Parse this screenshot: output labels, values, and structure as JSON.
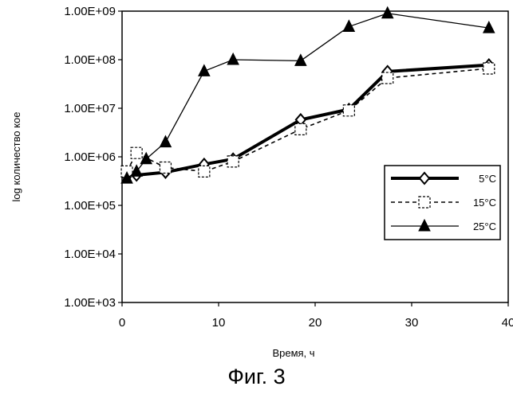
{
  "chart_data": {
    "type": "line",
    "title": "",
    "xlabel": "Время, ч",
    "ylabel": "log количество кое",
    "x_ticks": [
      "0",
      "10",
      "20",
      "30",
      "40"
    ],
    "y_ticks": [
      "1.00E+03",
      "1.00E+04",
      "1.00E+05",
      "1.00E+06",
      "1.00E+07",
      "1.00E+08",
      "1.00E+09"
    ],
    "xlim": [
      0,
      40
    ],
    "ylim": [
      1000,
      1000000000
    ],
    "y_scale": "log",
    "grid": false,
    "legend_position": "right",
    "series": [
      {
        "name": "5°C",
        "color": "#000000",
        "marker": "diamond",
        "line_style": "thick-solid",
        "points": [
          [
            0.5,
            400000
          ],
          [
            1.5,
            420000
          ],
          [
            4.5,
            480000
          ],
          [
            8.5,
            700000
          ],
          [
            11.5,
            900000
          ],
          [
            18.5,
            5800000
          ],
          [
            23.5,
            9500000
          ],
          [
            27.5,
            57000000
          ],
          [
            38,
            78000000
          ]
        ]
      },
      {
        "name": "15°C",
        "color": "#000000",
        "marker": "square",
        "line_style": "dashed",
        "points": [
          [
            0.5,
            500000
          ],
          [
            1.5,
            1200000
          ],
          [
            4.5,
            600000
          ],
          [
            8.5,
            500000
          ],
          [
            11.5,
            800000
          ],
          [
            18.5,
            3700000
          ],
          [
            23.5,
            9000000
          ],
          [
            27.5,
            42000000
          ],
          [
            38,
            66000000
          ]
        ]
      },
      {
        "name": "25°C",
        "color": "#000000",
        "marker": "triangle",
        "line_style": "thin-solid",
        "points": [
          [
            0.5,
            360000
          ],
          [
            1.5,
            500000
          ],
          [
            2.5,
            900000
          ],
          [
            4.5,
            2000000
          ],
          [
            8.5,
            58000000
          ],
          [
            11.5,
            100000000
          ],
          [
            18.5,
            95000000
          ],
          [
            23.5,
            480000000
          ],
          [
            27.5,
            900000000
          ],
          [
            38,
            450000000
          ]
        ]
      }
    ]
  },
  "caption": "Фиг. 3"
}
